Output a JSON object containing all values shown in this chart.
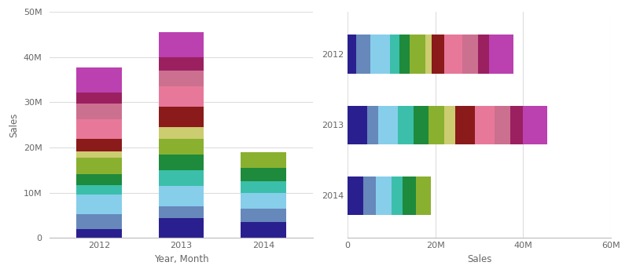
{
  "years": [
    "2012",
    "2013",
    "2014"
  ],
  "colors": [
    "#2a1f8f",
    "#6688bb",
    "#87ceeb",
    "#3bbfaa",
    "#1e8a3c",
    "#8ab030",
    "#cccc70",
    "#8b1a1a",
    "#e8789a",
    "#cc7090",
    "#9b2060",
    "#bb40b0"
  ],
  "segments_2012": [
    2.0,
    3.2,
    4.5,
    2.0,
    2.5,
    3.5,
    1.5,
    2.8,
    4.2,
    3.5,
    2.5,
    5.5
  ],
  "segments_2013": [
    4.5,
    2.5,
    4.5,
    3.5,
    3.5,
    3.5,
    2.5,
    4.5,
    4.5,
    3.5,
    3.0,
    5.5
  ],
  "segments_2014": [
    3.5,
    3.0,
    3.5,
    2.5,
    3.0,
    3.5,
    0,
    0,
    0,
    0,
    0,
    0
  ],
  "xlabel_left": "Year, Month",
  "ylabel_left": "Sales",
  "xlabel_right": "Sales",
  "yticks_left": [
    0,
    10000000,
    20000000,
    30000000,
    40000000,
    50000000
  ],
  "ytick_labels_left": [
    "0",
    "10M",
    "20M",
    "30M",
    "40M",
    "50M"
  ],
  "xticks_right": [
    0,
    20000000,
    40000000,
    60000000
  ],
  "xtick_labels_right": [
    "0",
    "20M",
    "40M",
    "60M"
  ],
  "bg_color": "#ffffff",
  "grid_color": "#dddddd",
  "text_color": "#666666"
}
